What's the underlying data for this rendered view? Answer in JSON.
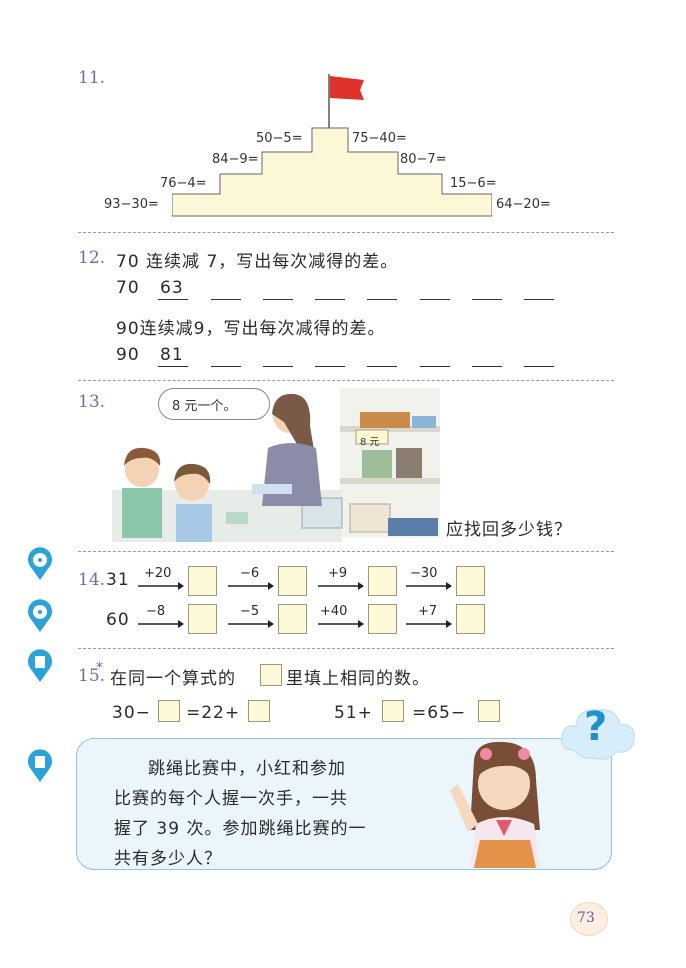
{
  "colors": {
    "accent": "#7a6aa8",
    "badge": "#2aa4d8",
    "box_fill": "#fdf8d8",
    "callout_bg": "#eaf6fc",
    "callout_border": "#8cc6e4"
  },
  "q11": {
    "number": "11.",
    "problems": {
      "l1": "93−30=",
      "l2": "76−4=",
      "l3": "84−9=",
      "l4": "50−5=",
      "r1": "75−40=",
      "r2": "80−7=",
      "r3": "15−6=",
      "r4": "64−20="
    }
  },
  "q12": {
    "number": "12.",
    "line1": "70 连续减 7，写出每次减得的差。",
    "start1": "70",
    "first1": "63",
    "line2": "90连续减9，写出每次减得的差。",
    "start2": "90",
    "first2": "81"
  },
  "q13": {
    "number": "13.",
    "speech": "8 元一个。",
    "price_tag": "8 元",
    "question": "应找回多少钱？"
  },
  "q14": {
    "number": "14.",
    "row1": {
      "start": "31",
      "ops": [
        "+20",
        "−6",
        "+9",
        "−30"
      ]
    },
    "row2": {
      "start": "60",
      "ops": [
        "−8",
        "−5",
        "+40",
        "+7"
      ]
    }
  },
  "q15": {
    "number": "15.",
    "star": "*",
    "instruction_a": "在同一个算式的",
    "instruction_b": "里填上相同的数。",
    "eq1": {
      "a": "30−",
      "b": "=22+"
    },
    "eq2": {
      "a": "51+",
      "b": "=65−"
    }
  },
  "callout": {
    "lines": [
      "跳绳比赛中，小红和参加",
      "比赛的每个人握一次手，一共",
      "握了 39 次。参加跳绳比赛的一",
      "共有多少人？"
    ],
    "question_mark": "?"
  },
  "page_number": "73"
}
